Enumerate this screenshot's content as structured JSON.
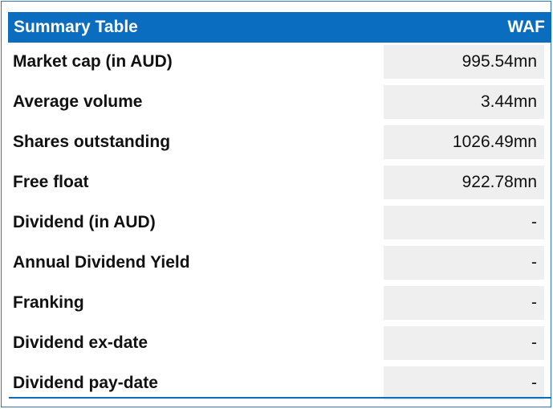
{
  "table": {
    "title": "Summary Table",
    "ticker": "WAF",
    "rows": [
      {
        "label": "Market cap (in AUD)",
        "value": "995.54mn"
      },
      {
        "label": "Average volume",
        "value": "3.44mn"
      },
      {
        "label": "Shares outstanding",
        "value": "1026.49mn"
      },
      {
        "label": "Free float",
        "value": "922.78mn"
      },
      {
        "label": "Dividend (in AUD)",
        "value": "-"
      },
      {
        "label": "Annual Dividend Yield",
        "value": "-"
      },
      {
        "label": "Franking",
        "value": "-"
      },
      {
        "label": "Dividend ex-date",
        "value": "-"
      },
      {
        "label": "Dividend pay-date",
        "value": "-"
      }
    ]
  },
  "colors": {
    "header_bg": "#0b6dc0",
    "header_text": "#ffffff",
    "value_cell_bg": "#efefef",
    "border": "#2f73b8"
  }
}
